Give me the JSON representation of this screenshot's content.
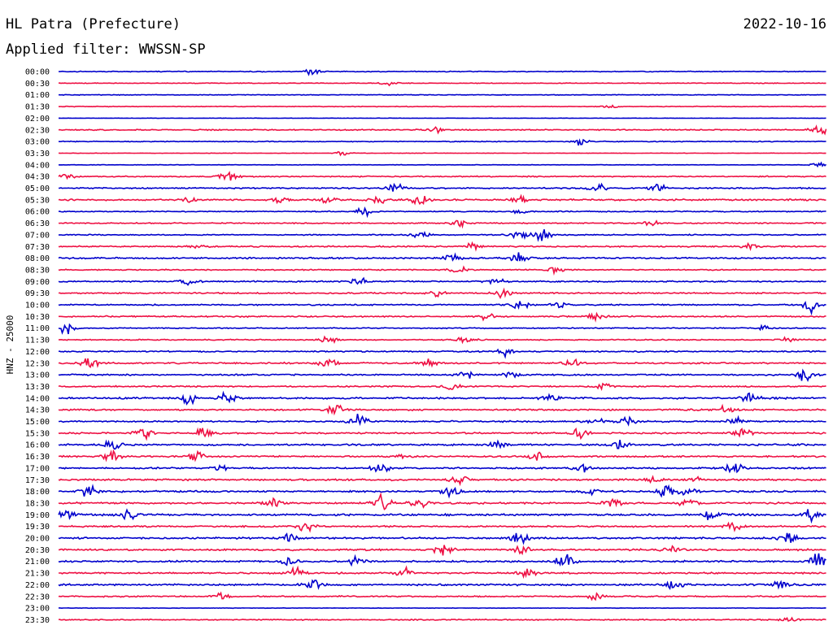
{
  "header": {
    "station": "HL Patra (Prefecture)",
    "date": "2022-10-16",
    "filter_text": "Applied filter: WWSSN-SP"
  },
  "chart_data": {
    "type": "line",
    "title": "HL Patra (Prefecture)",
    "date": "2022-10-16",
    "filter": "WWSSN-SP",
    "ylabel": "HNZ - 25000",
    "colors": [
      "#0000cc",
      "#ee1144"
    ],
    "time_labels": [
      "00:00",
      "00:30",
      "01:00",
      "01:30",
      "02:00",
      "02:30",
      "03:00",
      "03:30",
      "04:00",
      "04:30",
      "05:00",
      "05:30",
      "06:00",
      "06:30",
      "07:00",
      "07:30",
      "08:00",
      "08:30",
      "09:00",
      "09:30",
      "10:00",
      "10:30",
      "11:00",
      "11:30",
      "12:00",
      "12:30",
      "13:00",
      "13:30",
      "14:00",
      "14:30",
      "15:00",
      "15:30",
      "16:00",
      "16:30",
      "17:00",
      "17:30",
      "18:00",
      "18:30",
      "19:00",
      "19:30",
      "20:00",
      "20:30",
      "21:00",
      "21:30",
      "22:00",
      "22:30",
      "23:00",
      "23:30"
    ],
    "noise_level": [
      0.4,
      0.3,
      0.3,
      0.3,
      0.15,
      0.5,
      0.4,
      0.2,
      0.2,
      0.5,
      0.6,
      0.7,
      0.5,
      0.5,
      0.5,
      0.6,
      0.7,
      0.5,
      0.6,
      0.6,
      0.6,
      0.6,
      0.5,
      0.5,
      0.6,
      0.7,
      0.7,
      0.6,
      0.8,
      0.7,
      0.7,
      0.7,
      0.8,
      0.7,
      0.7,
      0.8,
      0.8,
      0.8,
      0.9,
      0.7,
      0.8,
      0.8,
      0.8,
      0.7,
      0.8,
      0.6,
      0.2,
      0.5
    ],
    "bursts": [
      [
        [
          0.33,
          1.4
        ]
      ],
      [
        [
          0.43,
          0.9
        ]
      ],
      [],
      [
        [
          0.72,
          0.6
        ]
      ],
      [],
      [
        [
          0.49,
          1.2
        ],
        [
          0.99,
          2.4
        ]
      ],
      [
        [
          0.68,
          1.8
        ]
      ],
      [
        [
          0.37,
          1.2
        ]
      ],
      [
        [
          0.99,
          1.2
        ]
      ],
      [
        [
          0.22,
          3.5
        ],
        [
          0.01,
          1.2
        ]
      ],
      [
        [
          0.44,
          2.6
        ],
        [
          0.7,
          2.2
        ],
        [
          0.78,
          1.8
        ]
      ],
      [
        [
          0.17,
          1.2
        ],
        [
          0.29,
          1.2
        ],
        [
          0.35,
          1.6
        ],
        [
          0.42,
          2.2
        ],
        [
          0.47,
          3.0
        ],
        [
          0.6,
          1.8
        ]
      ],
      [
        [
          0.4,
          2.4
        ],
        [
          0.6,
          1.6
        ]
      ],
      [
        [
          0.52,
          2.0
        ],
        [
          0.77,
          1.8
        ]
      ],
      [
        [
          0.47,
          1.8
        ],
        [
          0.6,
          2.0
        ],
        [
          0.63,
          3.0
        ]
      ],
      [
        [
          0.18,
          1.2
        ],
        [
          0.54,
          2.2
        ],
        [
          0.9,
          1.4
        ]
      ],
      [
        [
          0.51,
          2.0
        ],
        [
          0.6,
          3.0
        ]
      ],
      [
        [
          0.52,
          1.6
        ],
        [
          0.65,
          2.0
        ]
      ],
      [
        [
          0.17,
          1.8
        ],
        [
          0.39,
          2.0
        ],
        [
          0.57,
          1.4
        ]
      ],
      [
        [
          0.49,
          1.6
        ],
        [
          0.58,
          2.8
        ]
      ],
      [
        [
          0.6,
          2.6
        ],
        [
          0.65,
          1.6
        ],
        [
          0.98,
          3.5
        ]
      ],
      [
        [
          0.56,
          2.0
        ],
        [
          0.7,
          1.6
        ]
      ],
      [
        [
          0.01,
          2.4
        ],
        [
          0.92,
          1.6
        ]
      ],
      [
        [
          0.35,
          1.6
        ],
        [
          0.53,
          1.8
        ],
        [
          0.95,
          1.2
        ]
      ],
      [
        [
          0.58,
          2.4
        ]
      ],
      [
        [
          0.04,
          2.4
        ],
        [
          0.35,
          2.2
        ],
        [
          0.48,
          2.0
        ],
        [
          0.67,
          2.0
        ]
      ],
      [
        [
          0.53,
          2.0
        ],
        [
          0.59,
          1.4
        ],
        [
          0.97,
          3.5
        ]
      ],
      [
        [
          0.51,
          2.2
        ],
        [
          0.71,
          1.4
        ]
      ],
      [
        [
          0.17,
          3.0
        ],
        [
          0.22,
          3.0
        ],
        [
          0.64,
          2.0
        ],
        [
          0.9,
          2.4
        ]
      ],
      [
        [
          0.36,
          3.0
        ],
        [
          0.87,
          2.4
        ]
      ],
      [
        [
          0.39,
          4.0
        ],
        [
          0.7,
          2.2
        ],
        [
          0.74,
          2.0
        ],
        [
          0.88,
          1.8
        ]
      ],
      [
        [
          0.11,
          3.2
        ],
        [
          0.19,
          3.2
        ],
        [
          0.68,
          2.2
        ],
        [
          0.89,
          2.0
        ]
      ],
      [
        [
          0.07,
          2.4
        ],
        [
          0.57,
          1.8
        ],
        [
          0.73,
          2.4
        ]
      ],
      [
        [
          0.07,
          2.4
        ],
        [
          0.18,
          2.4
        ],
        [
          0.45,
          2.0
        ],
        [
          0.62,
          2.0
        ]
      ],
      [
        [
          0.21,
          2.6
        ],
        [
          0.42,
          2.6
        ],
        [
          0.68,
          2.0
        ],
        [
          0.88,
          2.4
        ]
      ],
      [
        [
          0.52,
          2.4
        ],
        [
          0.78,
          2.4
        ],
        [
          0.83,
          1.8
        ]
      ],
      [
        [
          0.04,
          3.0
        ],
        [
          0.51,
          2.4
        ],
        [
          0.69,
          2.2
        ],
        [
          0.79,
          2.6
        ],
        [
          0.82,
          2.6
        ]
      ],
      [
        [
          0.28,
          2.4
        ],
        [
          0.42,
          3.6
        ],
        [
          0.47,
          2.4
        ],
        [
          0.72,
          2.0
        ],
        [
          0.82,
          2.6
        ]
      ],
      [
        [
          0.01,
          2.8
        ],
        [
          0.09,
          2.8
        ],
        [
          0.85,
          2.6
        ],
        [
          0.98,
          2.8
        ]
      ],
      [
        [
          0.32,
          3.0
        ],
        [
          0.88,
          2.0
        ]
      ],
      [
        [
          0.3,
          2.0
        ],
        [
          0.6,
          2.6
        ],
        [
          0.95,
          2.8
        ]
      ],
      [
        [
          0.5,
          2.6
        ],
        [
          0.6,
          2.6
        ],
        [
          0.8,
          2.4
        ]
      ],
      [
        [
          0.3,
          2.2
        ],
        [
          0.39,
          2.4
        ],
        [
          0.66,
          3.4
        ],
        [
          0.99,
          3.6
        ]
      ],
      [
        [
          0.31,
          2.6
        ],
        [
          0.45,
          2.4
        ],
        [
          0.61,
          2.4
        ]
      ],
      [
        [
          0.33,
          3.0
        ],
        [
          0.8,
          2.8
        ],
        [
          0.94,
          2.4
        ]
      ],
      [
        [
          0.21,
          2.0
        ],
        [
          0.7,
          1.6
        ]
      ],
      [],
      [
        [
          0.95,
          1.0
        ]
      ]
    ]
  }
}
